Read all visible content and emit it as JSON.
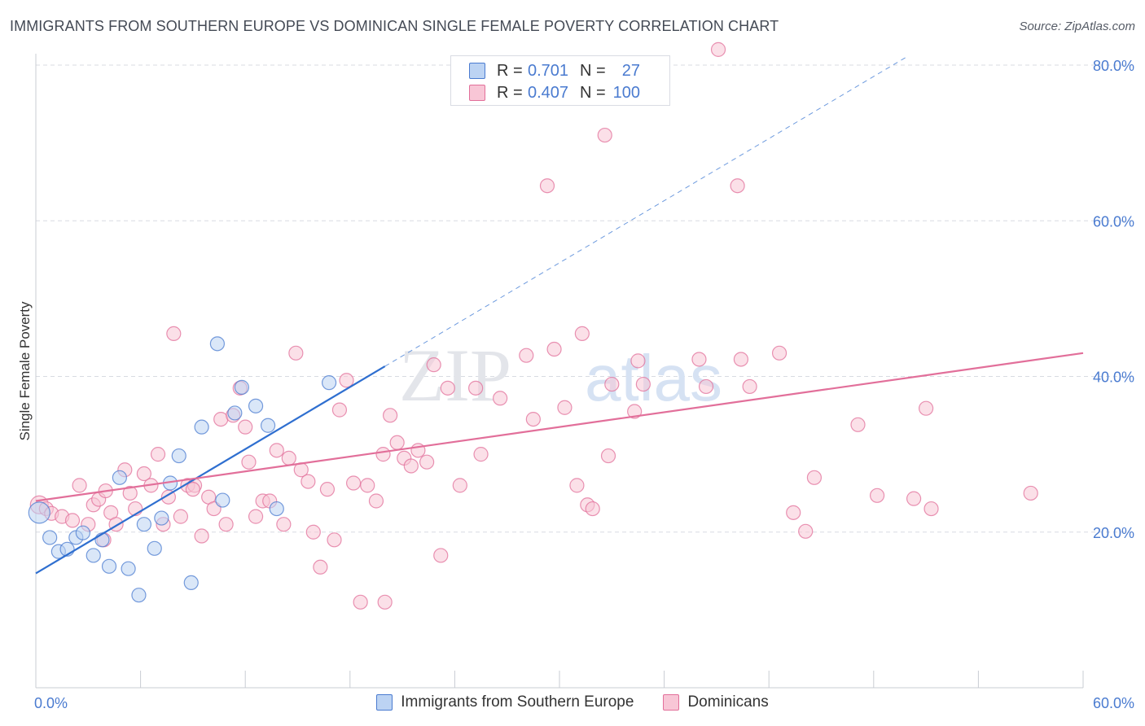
{
  "title": "IMMIGRANTS FROM SOUTHERN EUROPE VS DOMINICAN SINGLE FEMALE POVERTY CORRELATION CHART",
  "source": "Source: ZipAtlas.com",
  "watermark": {
    "zip": "ZIP",
    "atlas": "atlas"
  },
  "colors": {
    "blue": "#4a7bd0",
    "blue_fill": "#bcd3f3",
    "blue_line": "#2f6fd0",
    "pink": "#e26f9a",
    "pink_fill": "#f8c6d6",
    "pink_line": "#e26f9a",
    "grid": "#d8dbe2",
    "axis_text": "#4a7bd0"
  },
  "legend": {
    "rows": [
      {
        "r_label": "R =",
        "r_value": "0.701",
        "n_label": "N =",
        "n_value": "27",
        "color": "blue"
      },
      {
        "r_label": "R =",
        "r_value": "0.407",
        "n_label": "N =",
        "n_value": "100",
        "color": "pink"
      }
    ]
  },
  "chart_data": {
    "type": "scatter",
    "title": "IMMIGRANTS FROM SOUTHERN EUROPE VS DOMINICAN SINGLE FEMALE POVERTY CORRELATION CHART",
    "xlabel": "",
    "ylabel": "Single Female Poverty",
    "xlim": [
      0,
      60
    ],
    "ylim": [
      0,
      80
    ],
    "x_tick_labels": [
      "0.0%",
      "60.0%"
    ],
    "y_tick_labels": [
      "20.0%",
      "40.0%",
      "60.0%",
      "80.0%"
    ],
    "y_ticks": [
      20,
      40,
      60,
      80
    ],
    "legend_position": "top-center",
    "series": [
      {
        "name": "Immigrants from Southern Europe",
        "color": "blue",
        "r": 0.701,
        "n": 27,
        "trend": {
          "x0": 0,
          "y0": 14.7,
          "x1": 20,
          "y1": 41.3,
          "extend_to_x": 50
        },
        "points": [
          [
            0.2,
            22.5
          ],
          [
            0.8,
            19.3
          ],
          [
            1.3,
            17.5
          ],
          [
            1.8,
            17.8
          ],
          [
            2.3,
            19.3
          ],
          [
            2.7,
            19.9
          ],
          [
            3.3,
            17.0
          ],
          [
            3.8,
            19.0
          ],
          [
            4.2,
            15.6
          ],
          [
            4.8,
            27.0
          ],
          [
            5.3,
            15.3
          ],
          [
            5.9,
            11.9
          ],
          [
            6.2,
            21.0
          ],
          [
            6.8,
            17.9
          ],
          [
            7.2,
            21.8
          ],
          [
            7.7,
            26.3
          ],
          [
            8.2,
            29.8
          ],
          [
            8.9,
            13.5
          ],
          [
            9.5,
            33.5
          ],
          [
            10.4,
            44.2
          ],
          [
            10.7,
            24.1
          ],
          [
            11.4,
            35.3
          ],
          [
            11.8,
            38.6
          ],
          [
            12.6,
            36.2
          ],
          [
            13.3,
            33.7
          ],
          [
            13.8,
            23.0
          ],
          [
            16.8,
            39.2
          ]
        ]
      },
      {
        "name": "Dominicans",
        "color": "pink",
        "r": 0.407,
        "n": 100,
        "trend": {
          "x0": 0,
          "y0": 24.0,
          "x1": 60,
          "y1": 43.0
        },
        "points": [
          [
            0.2,
            23.5
          ],
          [
            0.6,
            23.0
          ],
          [
            0.9,
            22.4
          ],
          [
            1.5,
            22.0
          ],
          [
            2.1,
            21.5
          ],
          [
            2.5,
            26.0
          ],
          [
            3.0,
            21.0
          ],
          [
            3.3,
            23.5
          ],
          [
            3.6,
            24.2
          ],
          [
            3.9,
            19.0
          ],
          [
            4.3,
            22.5
          ],
          [
            4.6,
            21.0
          ],
          [
            5.1,
            28.0
          ],
          [
            5.4,
            25.0
          ],
          [
            5.7,
            23.0
          ],
          [
            6.2,
            27.5
          ],
          [
            6.6,
            26.0
          ],
          [
            7.0,
            30.0
          ],
          [
            7.3,
            21.0
          ],
          [
            7.6,
            24.5
          ],
          [
            7.9,
            45.5
          ],
          [
            8.3,
            22.0
          ],
          [
            8.7,
            26.0
          ],
          [
            9.1,
            26.0
          ],
          [
            9.5,
            19.5
          ],
          [
            9.9,
            24.5
          ],
          [
            10.2,
            23.0
          ],
          [
            10.6,
            34.5
          ],
          [
            10.9,
            21.0
          ],
          [
            11.3,
            35.0
          ],
          [
            11.7,
            38.5
          ],
          [
            12.2,
            29.0
          ],
          [
            12.6,
            22.0
          ],
          [
            13.0,
            24.0
          ],
          [
            13.4,
            24.0
          ],
          [
            13.8,
            30.5
          ],
          [
            14.2,
            21.0
          ],
          [
            14.5,
            29.5
          ],
          [
            14.9,
            43.0
          ],
          [
            15.2,
            28.0
          ],
          [
            15.6,
            26.5
          ],
          [
            15.9,
            20.0
          ],
          [
            16.3,
            15.5
          ],
          [
            16.7,
            25.5
          ],
          [
            17.1,
            19.0
          ],
          [
            17.4,
            35.7
          ],
          [
            17.8,
            39.5
          ],
          [
            18.2,
            26.3
          ],
          [
            18.6,
            11.0
          ],
          [
            19.0,
            26.0
          ],
          [
            19.5,
            24.0
          ],
          [
            19.9,
            30.0
          ],
          [
            20.3,
            35.0
          ],
          [
            20.7,
            31.5
          ],
          [
            21.1,
            29.5
          ],
          [
            21.5,
            28.5
          ],
          [
            21.9,
            30.5
          ],
          [
            22.4,
            29.0
          ],
          [
            22.8,
            41.5
          ],
          [
            23.2,
            17.0
          ],
          [
            23.6,
            38.5
          ],
          [
            24.3,
            26.0
          ],
          [
            25.2,
            38.5
          ],
          [
            25.5,
            30.0
          ],
          [
            26.6,
            37.2
          ],
          [
            28.1,
            42.7
          ],
          [
            28.5,
            34.5
          ],
          [
            29.3,
            64.5
          ],
          [
            29.7,
            43.5
          ],
          [
            30.3,
            36.0
          ],
          [
            31.0,
            26.0
          ],
          [
            31.3,
            45.5
          ],
          [
            31.6,
            23.5
          ],
          [
            31.9,
            23.0
          ],
          [
            32.6,
            71.0
          ],
          [
            32.8,
            29.8
          ],
          [
            33.0,
            39.0
          ],
          [
            34.3,
            35.5
          ],
          [
            34.5,
            42.0
          ],
          [
            34.8,
            39.0
          ],
          [
            38.0,
            42.2
          ],
          [
            38.4,
            38.7
          ],
          [
            39.1,
            82.0
          ],
          [
            40.2,
            64.5
          ],
          [
            40.4,
            42.2
          ],
          [
            40.9,
            38.7
          ],
          [
            42.6,
            43.0
          ],
          [
            43.4,
            22.5
          ],
          [
            44.1,
            20.1
          ],
          [
            44.6,
            27.0
          ],
          [
            47.1,
            33.8
          ],
          [
            48.2,
            24.7
          ],
          [
            50.3,
            24.3
          ],
          [
            51.0,
            35.9
          ],
          [
            51.3,
            23.0
          ],
          [
            57.0,
            25.0
          ],
          [
            20.0,
            11.0
          ],
          [
            12.0,
            33.5
          ],
          [
            9.0,
            25.5
          ],
          [
            4.0,
            25.3
          ]
        ]
      }
    ]
  },
  "bottom_legend": {
    "items": [
      {
        "label": "Immigrants from Southern Europe",
        "color": "blue"
      },
      {
        "label": "Dominicans",
        "color": "pink"
      }
    ]
  }
}
